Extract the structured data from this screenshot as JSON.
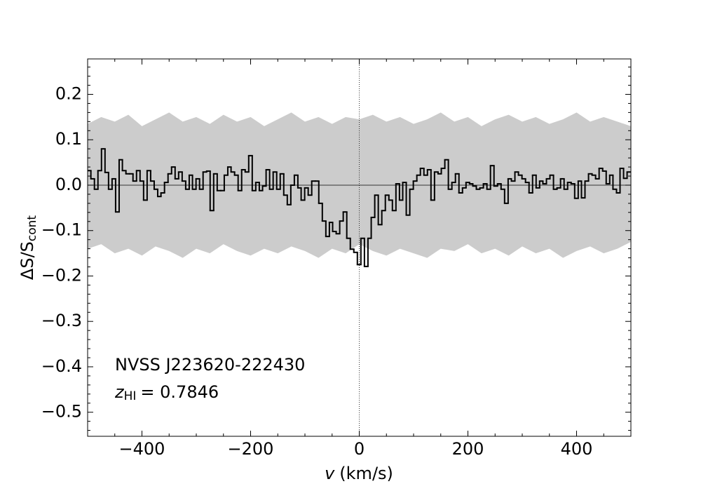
{
  "chart_data": {
    "type": "step",
    "x_label": {
      "var": "v",
      "unit": "(km/s)"
    },
    "y_label": {
      "main": "ΔS/S",
      "sub": "cont"
    },
    "annotation": {
      "source": "NVSS J223620-222430",
      "var": "z",
      "sub": "HI",
      "rest": "= 0.7846"
    },
    "xlim": [
      -500,
      500
    ],
    "ylim": [
      -0.553,
      0.278
    ],
    "xticks": [
      {
        "value": -400,
        "label": "−400"
      },
      {
        "value": -200,
        "label": "−200"
      },
      0,
      200,
      400
    ],
    "yticks": [
      {
        "value": -0.5,
        "label": "−0.5"
      },
      {
        "value": -0.4,
        "label": "−0.4"
      },
      {
        "value": -0.3,
        "label": "−0.3"
      },
      {
        "value": -0.2,
        "label": "−0.2"
      },
      {
        "value": -0.1,
        "label": "−0.1"
      },
      {
        "value": 0,
        "label": "0.0"
      },
      0.1,
      0.2
    ],
    "xminorticks": [
      -450,
      -350,
      -300,
      -250,
      -150,
      -100,
      -50,
      50,
      100,
      150,
      250,
      300,
      350,
      450
    ],
    "yminorticks": [
      -0.54,
      -0.52,
      -0.48,
      -0.46,
      -0.44,
      -0.42,
      -0.38,
      -0.36,
      -0.34,
      -0.32,
      -0.28,
      -0.26,
      -0.24,
      -0.22,
      -0.18,
      -0.16,
      -0.14,
      -0.12,
      -0.08,
      -0.06,
      -0.04,
      -0.02,
      0.02,
      0.04,
      0.06,
      0.08,
      0.12,
      0.14,
      0.16,
      0.18,
      0.22,
      0.24,
      0.26
    ],
    "hlines": [
      0
    ],
    "vlines": [
      0
    ],
    "color": "#000000",
    "band_color": "#cccccc",
    "x": [
      -497,
      -491,
      -484,
      -478,
      -471,
      -465,
      -458,
      -452,
      -445,
      -439,
      -433,
      -426,
      -420,
      -413,
      -407,
      -400,
      -394,
      -387,
      -381,
      -374,
      -368,
      -362,
      -355,
      -349,
      -342,
      -336,
      -329,
      -323,
      -316,
      -310,
      -304,
      -297,
      -291,
      -284,
      -278,
      -271,
      -265,
      -258,
      -252,
      -245,
      -239,
      -233,
      -226,
      -220,
      -213,
      -207,
      -200,
      -194,
      -187,
      -181,
      -175,
      -168,
      -162,
      -155,
      -149,
      -142,
      -136,
      -129,
      -123,
      -116,
      -110,
      -104,
      -97,
      -91,
      -84,
      -78,
      -71,
      -65,
      -58,
      -52,
      -46,
      -39,
      -33,
      -26,
      -20,
      -13,
      -7,
      0,
      6,
      13,
      19,
      25,
      32,
      38,
      45,
      51,
      58,
      64,
      71,
      77,
      83,
      90,
      96,
      103,
      109,
      116,
      122,
      129,
      135,
      142,
      148,
      154,
      161,
      167,
      174,
      180,
      187,
      193,
      200,
      206,
      212,
      219,
      225,
      232,
      238,
      245,
      251,
      258,
      264,
      271,
      277,
      283,
      290,
      296,
      303,
      309,
      316,
      322,
      329,
      335,
      341,
      348,
      354,
      361,
      367,
      374,
      380,
      387,
      393,
      400,
      406,
      412,
      419,
      425,
      432,
      438,
      445,
      451,
      458,
      464,
      470,
      477,
      483,
      490,
      496
    ],
    "values": [
      0.032,
      0.014,
      -0.009,
      0.032,
      0.08,
      0.028,
      -0.009,
      0.014,
      -0.059,
      0.056,
      0.032,
      0.025,
      0.025,
      0.009,
      0.032,
      0.009,
      -0.033,
      0.032,
      0.009,
      -0.009,
      -0.025,
      -0.017,
      0.006,
      0.025,
      0.04,
      0.014,
      0.029,
      0.009,
      -0.009,
      0.022,
      -0.009,
      0.014,
      -0.009,
      0.029,
      0.031,
      -0.056,
      0.025,
      -0.012,
      -0.012,
      0.022,
      0.04,
      0.029,
      0.022,
      -0.012,
      0.034,
      0.029,
      0.065,
      -0.012,
      0.006,
      -0.012,
      -0.002,
      0.034,
      -0.009,
      0.029,
      -0.009,
      0.025,
      -0.022,
      -0.043,
      0.0,
      0.022,
      -0.006,
      -0.033,
      -0.006,
      -0.022,
      0.009,
      0.009,
      -0.04,
      -0.079,
      -0.113,
      -0.082,
      -0.102,
      -0.107,
      -0.079,
      -0.059,
      -0.117,
      -0.141,
      -0.148,
      -0.175,
      -0.117,
      -0.179,
      -0.117,
      -0.071,
      -0.022,
      -0.087,
      -0.056,
      -0.022,
      -0.033,
      -0.056,
      0.003,
      -0.033,
      0.006,
      -0.066,
      -0.009,
      0.009,
      0.022,
      0.037,
      0.022,
      0.034,
      -0.033,
      0.029,
      0.025,
      0.037,
      0.056,
      -0.009,
      0.006,
      0.025,
      -0.017,
      -0.006,
      0.006,
      0.003,
      -0.002,
      -0.009,
      -0.006,
      0.003,
      -0.009,
      0.043,
      -0.002,
      0.003,
      -0.009,
      -0.04,
      0.014,
      0.009,
      0.029,
      0.022,
      0.014,
      0.006,
      -0.017,
      0.022,
      -0.006,
      0.009,
      0.003,
      0.014,
      0.022,
      -0.009,
      -0.006,
      0.014,
      -0.009,
      0.006,
      0.003,
      -0.029,
      0.009,
      -0.028,
      0.009,
      0.025,
      0.022,
      0.014,
      0.037,
      0.031,
      0.003,
      0.022,
      -0.009,
      -0.017,
      0.037,
      0.015,
      0.029
    ],
    "band": {
      "x": [
        -500,
        -475,
        -450,
        -425,
        -400,
        -375,
        -350,
        -325,
        -300,
        -275,
        -250,
        -225,
        -200,
        -175,
        -150,
        -125,
        -100,
        -75,
        -50,
        -25,
        0,
        25,
        50,
        75,
        100,
        125,
        150,
        175,
        200,
        225,
        250,
        275,
        300,
        325,
        350,
        375,
        400,
        425,
        450,
        475,
        500
      ],
      "upper": [
        0.135,
        0.15,
        0.14,
        0.155,
        0.13,
        0.145,
        0.16,
        0.14,
        0.15,
        0.135,
        0.155,
        0.14,
        0.15,
        0.13,
        0.145,
        0.16,
        0.14,
        0.15,
        0.135,
        0.15,
        0.145,
        0.155,
        0.14,
        0.15,
        0.135,
        0.145,
        0.16,
        0.14,
        0.15,
        0.13,
        0.145,
        0.155,
        0.14,
        0.15,
        0.135,
        0.145,
        0.16,
        0.14,
        0.15,
        0.14,
        0.13
      ],
      "lower": [
        -0.14,
        -0.13,
        -0.15,
        -0.14,
        -0.155,
        -0.135,
        -0.145,
        -0.16,
        -0.14,
        -0.15,
        -0.13,
        -0.145,
        -0.155,
        -0.14,
        -0.15,
        -0.135,
        -0.145,
        -0.16,
        -0.14,
        -0.15,
        -0.13,
        -0.145,
        -0.155,
        -0.14,
        -0.15,
        -0.16,
        -0.14,
        -0.145,
        -0.13,
        -0.15,
        -0.14,
        -0.155,
        -0.135,
        -0.15,
        -0.14,
        -0.16,
        -0.145,
        -0.135,
        -0.15,
        -0.14,
        -0.125
      ]
    }
  }
}
